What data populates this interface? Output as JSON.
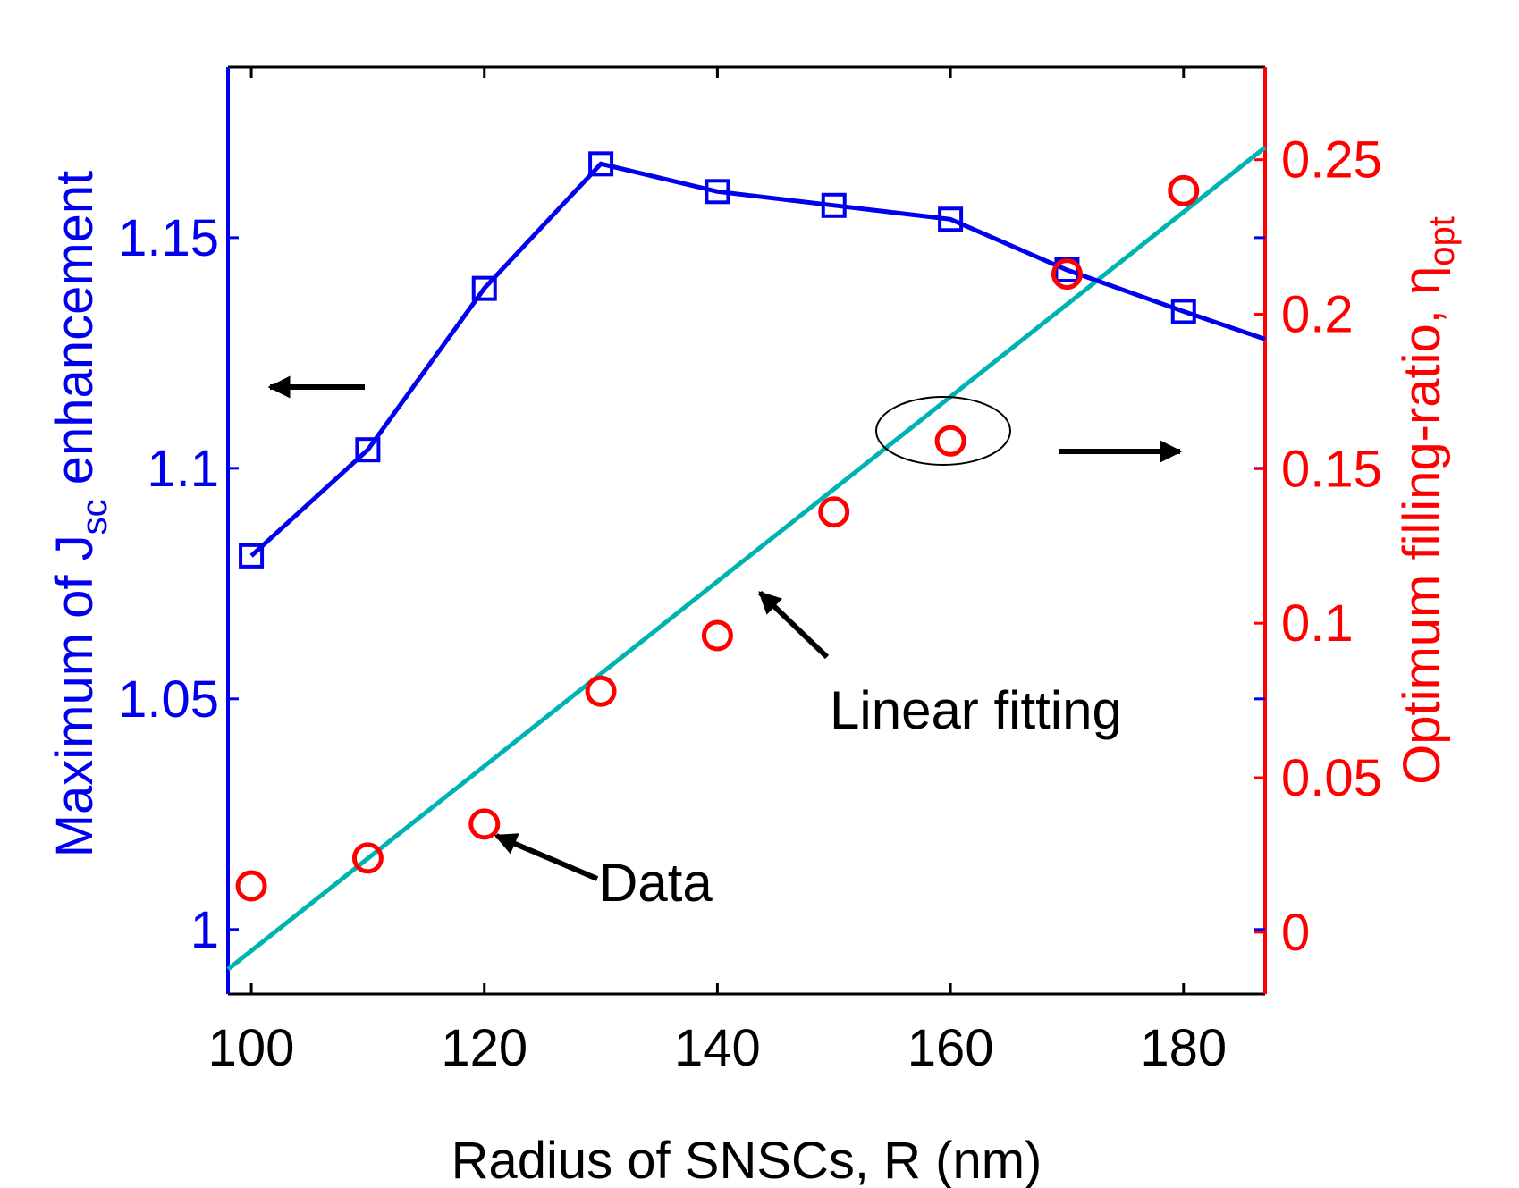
{
  "colors": {
    "left_axis": "#0000ee",
    "right_axis": "#ff0000",
    "fit_line": "#00b3b3",
    "black": "#000000"
  },
  "chart_data": {
    "type": "line",
    "xlabel": "Radius of SNSCs, R (nm)",
    "x_range": [
      98,
      187
    ],
    "x_ticks": [
      100,
      120,
      140,
      160,
      180
    ],
    "left_axis": {
      "label_parts": [
        "Maximum of J",
        "sc",
        " enhancement"
      ],
      "range": [
        0.986,
        1.187
      ],
      "ticks": [
        1,
        1.05,
        1.1,
        1.15
      ],
      "tick_labels": [
        "1",
        "1.05",
        "1.1",
        "1.15"
      ]
    },
    "right_axis": {
      "label_parts": [
        "Optimum filling-ratio, η",
        "opt"
      ],
      "range": [
        -0.02,
        0.28
      ],
      "ticks": [
        0,
        0.05,
        0.1,
        0.15,
        0.2,
        0.25
      ],
      "tick_labels": [
        "0",
        "0.05",
        "0.1",
        "0.15",
        "0.2",
        "0.25"
      ]
    },
    "series": [
      {
        "name": "Maximum of Jsc enhancement",
        "axis": "left",
        "style": "line-square",
        "x": [
          100,
          110,
          120,
          130,
          140,
          150,
          160,
          170,
          180,
          187
        ],
        "y": [
          1.081,
          1.104,
          1.139,
          1.166,
          1.16,
          1.157,
          1.154,
          1.143,
          1.134,
          1.128
        ],
        "marker_count": 9
      },
      {
        "name": "Data",
        "axis": "right",
        "style": "circle",
        "x": [
          100,
          110,
          120,
          130,
          140,
          150,
          160,
          170,
          180
        ],
        "y": [
          0.015,
          0.024,
          0.035,
          0.078,
          0.096,
          0.136,
          0.159,
          0.213,
          0.24
        ]
      },
      {
        "name": "Linear fitting",
        "axis": "right",
        "style": "line",
        "x": [
          98,
          187
        ],
        "y": [
          -0.012,
          0.254
        ]
      }
    ],
    "annotations": {
      "linear_fitting": "Linear fitting",
      "data": "Data"
    }
  }
}
